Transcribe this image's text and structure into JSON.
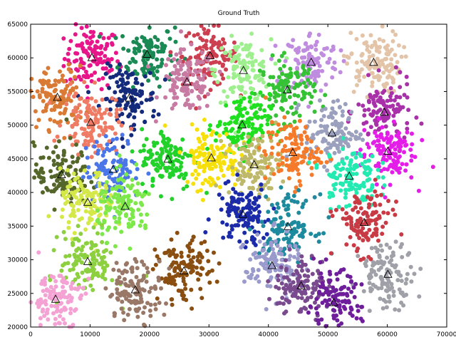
{
  "chart_data": {
    "type": "scatter",
    "title": "Ground Truth",
    "xlabel": "",
    "ylabel": "",
    "xlim": [
      0,
      70000
    ],
    "ylim": [
      20000,
      65000
    ],
    "xticks": [
      0,
      10000,
      20000,
      30000,
      40000,
      50000,
      60000,
      70000
    ],
    "yticks": [
      20000,
      25000,
      30000,
      35000,
      40000,
      45000,
      50000,
      55000,
      60000,
      65000
    ],
    "grid": false,
    "legend": "none",
    "marker_centroid": "triangle",
    "spread": 2300,
    "points_per_cluster": 120,
    "clusters": [
      {
        "cx": 10300,
        "cy": 60000,
        "color": "#e8158a"
      },
      {
        "cx": 19600,
        "cy": 60500,
        "color": "#1a8a55"
      },
      {
        "cx": 30200,
        "cy": 60300,
        "color": "#cc3f50"
      },
      {
        "cx": 26300,
        "cy": 56400,
        "color": "#c77aa2"
      },
      {
        "cx": 35800,
        "cy": 58100,
        "color": "#9ef08e"
      },
      {
        "cx": 47200,
        "cy": 59300,
        "color": "#c08ce0"
      },
      {
        "cx": 57700,
        "cy": 59300,
        "color": "#e3c4a8"
      },
      {
        "cx": 4500,
        "cy": 54100,
        "color": "#d97a35"
      },
      {
        "cx": 16600,
        "cy": 54000,
        "color": "#142a7a"
      },
      {
        "cx": 43200,
        "cy": 55200,
        "color": "#35c235"
      },
      {
        "cx": 59500,
        "cy": 51900,
        "color": "#a830a8"
      },
      {
        "cx": 10100,
        "cy": 50400,
        "color": "#ef7b65"
      },
      {
        "cx": 35600,
        "cy": 50000,
        "color": "#1ee01e"
      },
      {
        "cx": 50700,
        "cy": 48800,
        "color": "#9aa0bd"
      },
      {
        "cx": 23100,
        "cy": 44900,
        "color": "#22d22a"
      },
      {
        "cx": 30400,
        "cy": 45100,
        "color": "#f7e00a"
      },
      {
        "cx": 37600,
        "cy": 44100,
        "color": "#bdb86a"
      },
      {
        "cx": 44100,
        "cy": 45900,
        "color": "#f57a2a"
      },
      {
        "cx": 60100,
        "cy": 46100,
        "color": "#e41ee8"
      },
      {
        "cx": 5200,
        "cy": 42600,
        "color": "#55662a"
      },
      {
        "cx": 13900,
        "cy": 43400,
        "color": "#4a76e8"
      },
      {
        "cx": 53600,
        "cy": 42400,
        "color": "#22eab0"
      },
      {
        "cx": 9600,
        "cy": 38500,
        "color": "#d4e84a"
      },
      {
        "cx": 15900,
        "cy": 37900,
        "color": "#7ce84a"
      },
      {
        "cx": 35700,
        "cy": 36700,
        "color": "#1a2aa8"
      },
      {
        "cx": 43300,
        "cy": 34900,
        "color": "#1e8a9e"
      },
      {
        "cx": 56100,
        "cy": 35500,
        "color": "#c83a44"
      },
      {
        "cx": 9600,
        "cy": 29700,
        "color": "#8cd040"
      },
      {
        "cx": 40600,
        "cy": 29100,
        "color": "#9a9acc"
      },
      {
        "cx": 25800,
        "cy": 28300,
        "color": "#8a4e10"
      },
      {
        "cx": 60100,
        "cy": 27800,
        "color": "#a0a0a8"
      },
      {
        "cx": 17600,
        "cy": 25500,
        "color": "#9a7868"
      },
      {
        "cx": 45500,
        "cy": 26100,
        "color": "#7a4a8e"
      },
      {
        "cx": 4200,
        "cy": 24100,
        "color": "#f4a2d4"
      },
      {
        "cx": 51000,
        "cy": 23600,
        "color": "#6e1e9a"
      }
    ]
  }
}
